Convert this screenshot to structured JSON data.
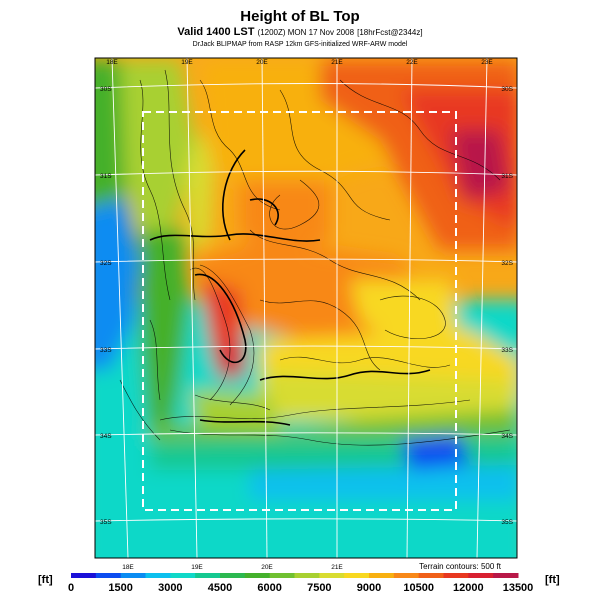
{
  "header": {
    "title": "Height of BL Top",
    "valid_prefix": "Valid 1400 LST",
    "valid_date": "(1200Z) MON 17 Nov 2008",
    "valid_run": "[18hrFcst@2344z]",
    "credit": "DrJack BLIPMAP from RASP 12km GFS-initialized WRF-ARW model"
  },
  "map": {
    "lon_labels_top": [
      "18E",
      "19E",
      "20E",
      "21E",
      "22E",
      "23E"
    ],
    "lon_labels_bottom": [
      "18E",
      "19E",
      "20E",
      "21E"
    ],
    "lat_labels_left": [
      "30S",
      "31S",
      "32S",
      "33S",
      "34S",
      "35S"
    ],
    "lat_labels_right": [
      "30S",
      "31S",
      "32S",
      "33S",
      "34S",
      "35S"
    ],
    "terrain_note": "Terrain contours: 500 ft"
  },
  "colorbar": {
    "unit_left": "[ft]",
    "unit_right": "[ft]",
    "ticks": [
      "0",
      "1500",
      "3000",
      "4500",
      "6000",
      "7500",
      "9000",
      "10500",
      "12000",
      "13500"
    ],
    "colors": [
      "#1a10d8",
      "#0c4cf0",
      "#0a8cf2",
      "#0cc0ee",
      "#10d8c8",
      "#14c890",
      "#2cb850",
      "#44b02c",
      "#70c030",
      "#a8d030",
      "#d8dc30",
      "#f8d820",
      "#f8b010",
      "#f88818",
      "#f06018",
      "#e83820",
      "#d82030",
      "#b81848"
    ]
  }
}
